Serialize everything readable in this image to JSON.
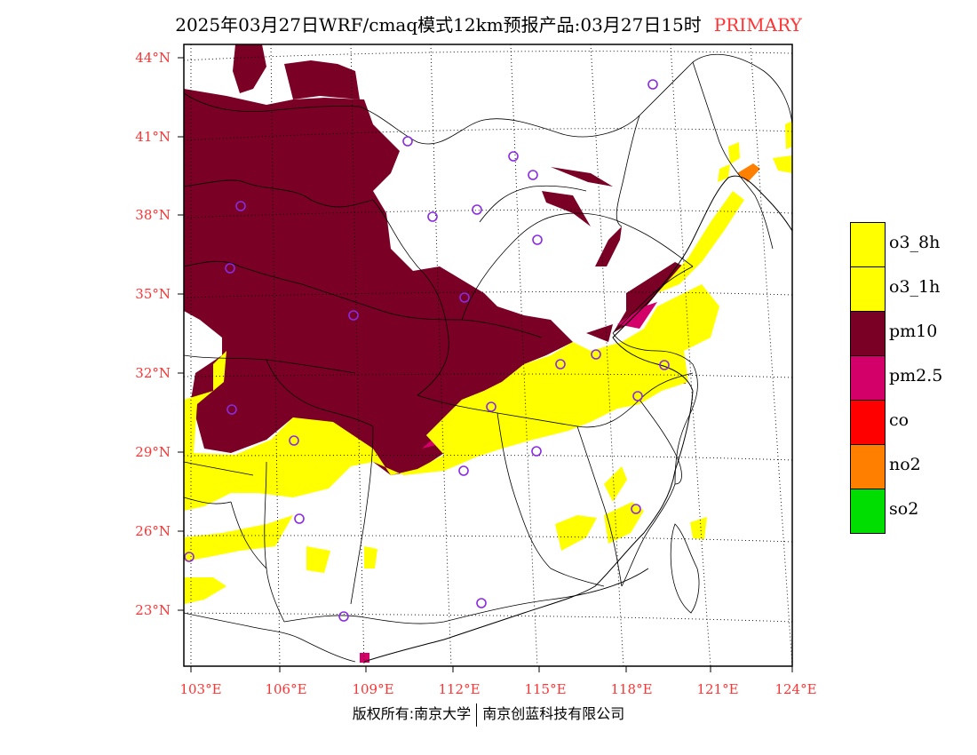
{
  "title": {
    "main": "2025年03月27日WRF/cmaq模式12km预报产品:03月27日15时",
    "primary": "PRIMARY"
  },
  "map": {
    "lat_labels": [
      "44°N",
      "41°N",
      "38°N",
      "35°N",
      "32°N",
      "29°N",
      "26°N",
      "23°N"
    ],
    "lon_labels": [
      "103°E",
      "106°E",
      "109°E",
      "112°E",
      "115°E",
      "118°E",
      "121°E",
      "124°E"
    ],
    "colors": {
      "pm10": "#7a0026",
      "pm2_5": "#d4006a",
      "o3": "#ffff00",
      "no2": "#ff8000",
      "boundary": "#000000",
      "station": "#8a2be2",
      "grid": "#000000"
    }
  },
  "legend": [
    {
      "label": "o3_8h",
      "color": "#ffff00"
    },
    {
      "label": "o3_1h",
      "color": "#ffff00"
    },
    {
      "label": "pm10",
      "color": "#7a0026"
    },
    {
      "label": "pm2.5",
      "color": "#d4006a"
    },
    {
      "label": "co",
      "color": "#ff0000"
    },
    {
      "label": "no2",
      "color": "#ff8000"
    },
    {
      "label": "so2",
      "color": "#00dd00"
    }
  ],
  "footer": {
    "left": "版权所有:南京大学",
    "right": "南京创蓝科技有限公司"
  }
}
